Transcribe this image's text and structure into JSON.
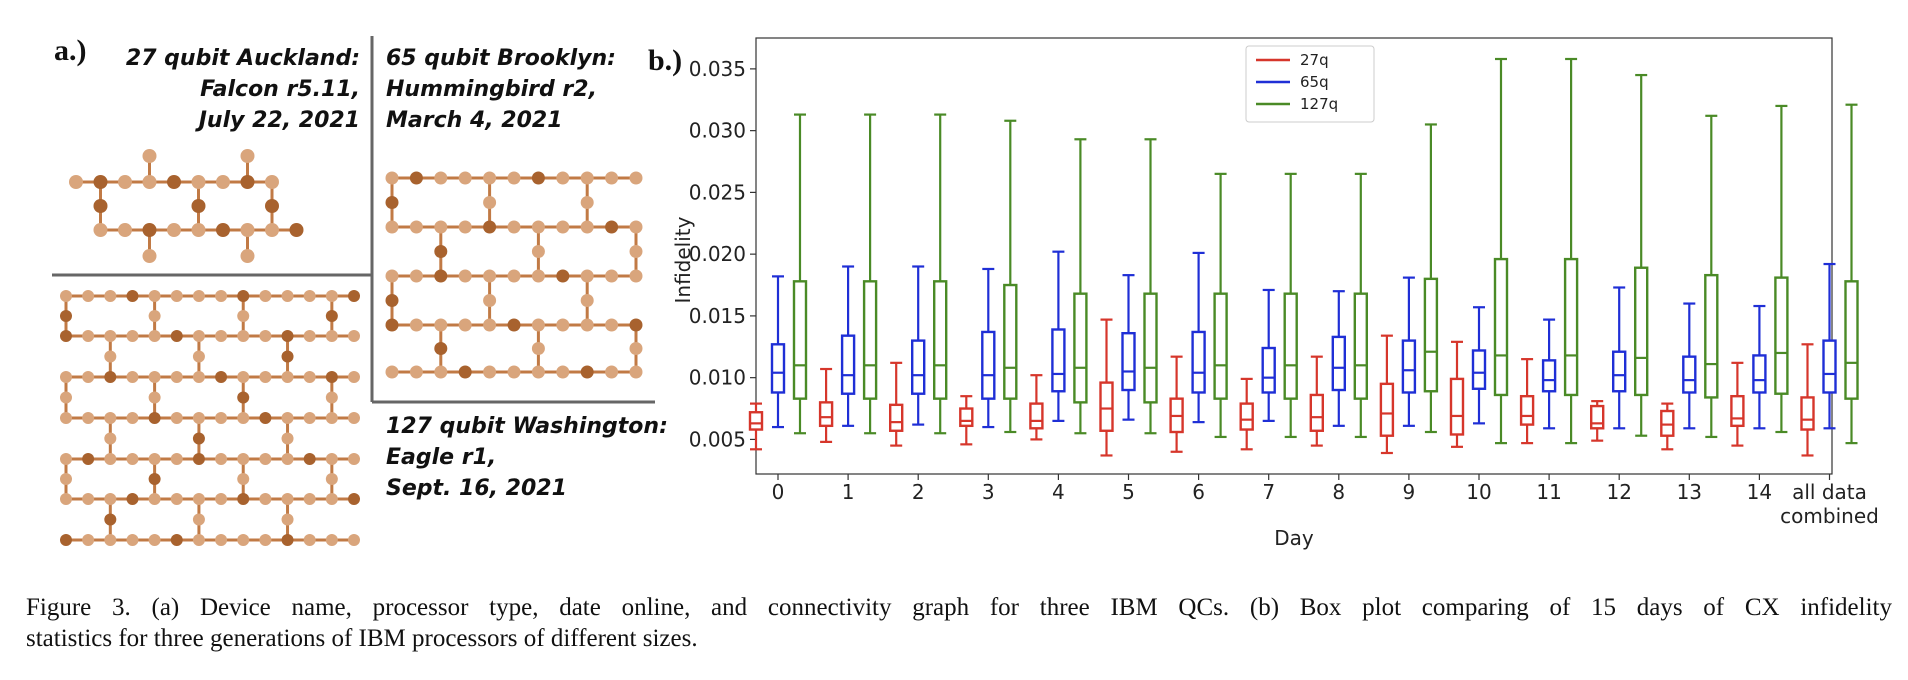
{
  "panel_a": {
    "label": "a.)",
    "devices": {
      "auckland": {
        "line1": "27 qubit Auckland:",
        "line2": "Falcon r5.11,",
        "line3": "July 22, 2021"
      },
      "brooklyn": {
        "line1": "65 qubit Brooklyn:",
        "line2": "Hummingbird r2,",
        "line3": "March 4, 2021"
      },
      "washington": {
        "line1": "127 qubit Washington:",
        "line2": "Eagle r1,",
        "line3": "Sept. 16, 2021"
      }
    },
    "colors": {
      "node_light": "#d9a57c",
      "node_dark": "#a8622e",
      "edge": "#c17a45",
      "divider": "#666666"
    }
  },
  "panel_b": {
    "label": "b.)"
  },
  "chart_data": {
    "type": "boxplot",
    "xlabel": "Day",
    "ylabel": "Infidelity",
    "ylim": [
      0.0022,
      0.0375
    ],
    "yticks": [
      "0.005",
      "0.010",
      "0.015",
      "0.020",
      "0.025",
      "0.030",
      "0.035"
    ],
    "categories": [
      "0",
      "1",
      "2",
      "3",
      "4",
      "5",
      "6",
      "7",
      "8",
      "9",
      "10",
      "11",
      "12",
      "13",
      "14",
      "all data combined"
    ],
    "legend_position": "top-center",
    "series": [
      {
        "name": "27q",
        "color": "#d6362b",
        "boxes": [
          [
            0.0042,
            0.0058,
            0.0063,
            0.0072,
            0.0079
          ],
          [
            0.0048,
            0.0061,
            0.0068,
            0.008,
            0.0107
          ],
          [
            0.0045,
            0.0057,
            0.0064,
            0.0078,
            0.0112
          ],
          [
            0.0046,
            0.0061,
            0.0065,
            0.0075,
            0.0085
          ],
          [
            0.005,
            0.0059,
            0.0065,
            0.0079,
            0.0102
          ],
          [
            0.0037,
            0.0057,
            0.0075,
            0.0096,
            0.0147
          ],
          [
            0.004,
            0.0056,
            0.0069,
            0.0083,
            0.0117
          ],
          [
            0.0042,
            0.0058,
            0.0066,
            0.0079,
            0.0099
          ],
          [
            0.0045,
            0.0057,
            0.0068,
            0.0086,
            0.0117
          ],
          [
            0.0039,
            0.0053,
            0.0071,
            0.0095,
            0.0134
          ],
          [
            0.0044,
            0.0054,
            0.0069,
            0.0099,
            0.0129
          ],
          [
            0.0047,
            0.0062,
            0.0069,
            0.0085,
            0.0115
          ],
          [
            0.0049,
            0.0059,
            0.0063,
            0.0077,
            0.0081
          ],
          [
            0.0042,
            0.0053,
            0.0062,
            0.0073,
            0.0079
          ],
          [
            0.0045,
            0.0061,
            0.0067,
            0.0085,
            0.0112
          ],
          [
            0.0037,
            0.0058,
            0.0066,
            0.0084,
            0.0127
          ]
        ]
      },
      {
        "name": "65q",
        "color": "#1f2fd6",
        "boxes": [
          [
            0.006,
            0.0088,
            0.0104,
            0.0127,
            0.0182
          ],
          [
            0.0061,
            0.0087,
            0.0102,
            0.0134,
            0.019
          ],
          [
            0.0062,
            0.0087,
            0.0102,
            0.013,
            0.019
          ],
          [
            0.006,
            0.0083,
            0.0102,
            0.0137,
            0.0188
          ],
          [
            0.0065,
            0.0089,
            0.0103,
            0.0139,
            0.0202
          ],
          [
            0.0066,
            0.009,
            0.0105,
            0.0136,
            0.0183
          ],
          [
            0.0064,
            0.0088,
            0.0104,
            0.0137,
            0.0201
          ],
          [
            0.0065,
            0.0088,
            0.01,
            0.0124,
            0.0171
          ],
          [
            0.0061,
            0.009,
            0.0108,
            0.0133,
            0.017
          ],
          [
            0.0061,
            0.0088,
            0.0106,
            0.013,
            0.0181
          ],
          [
            0.0063,
            0.0091,
            0.0104,
            0.0122,
            0.0157
          ],
          [
            0.0059,
            0.0089,
            0.0098,
            0.0114,
            0.0147
          ],
          [
            0.0059,
            0.0089,
            0.0102,
            0.0121,
            0.0173
          ],
          [
            0.0059,
            0.0088,
            0.0098,
            0.0117,
            0.016
          ],
          [
            0.0059,
            0.0088,
            0.0098,
            0.0118,
            0.0158
          ],
          [
            0.0059,
            0.0088,
            0.0103,
            0.013,
            0.0192
          ]
        ]
      },
      {
        "name": "127q",
        "color": "#4a8a26",
        "boxes": [
          [
            0.0055,
            0.0083,
            0.011,
            0.0178,
            0.0313
          ],
          [
            0.0055,
            0.0083,
            0.011,
            0.0178,
            0.0313
          ],
          [
            0.0055,
            0.0083,
            0.011,
            0.0178,
            0.0313
          ],
          [
            0.0056,
            0.0083,
            0.0108,
            0.0175,
            0.0308
          ],
          [
            0.0055,
            0.008,
            0.0108,
            0.0168,
            0.0293
          ],
          [
            0.0055,
            0.008,
            0.0108,
            0.0168,
            0.0293
          ],
          [
            0.0052,
            0.0083,
            0.011,
            0.0168,
            0.0265
          ],
          [
            0.0052,
            0.0083,
            0.011,
            0.0168,
            0.0265
          ],
          [
            0.0052,
            0.0083,
            0.011,
            0.0168,
            0.0265
          ],
          [
            0.0056,
            0.0089,
            0.0121,
            0.018,
            0.0305
          ],
          [
            0.0047,
            0.0086,
            0.0118,
            0.0196,
            0.0358
          ],
          [
            0.0047,
            0.0086,
            0.0118,
            0.0196,
            0.0358
          ],
          [
            0.0053,
            0.0086,
            0.0116,
            0.0189,
            0.0345
          ],
          [
            0.0052,
            0.0084,
            0.0111,
            0.0183,
            0.0312
          ],
          [
            0.0056,
            0.0087,
            0.012,
            0.0181,
            0.032
          ],
          [
            0.0047,
            0.0083,
            0.0112,
            0.0178,
            0.0321
          ]
        ]
      }
    ]
  },
  "caption": {
    "line1": "Figure 3.   (a) Device name, processor type, date online, and connectivity graph for three IBM QCs. (b) Box plot comparing of 15 days of CX infidelity",
    "line2": "statistics for three generations of IBM processors of different sizes."
  }
}
